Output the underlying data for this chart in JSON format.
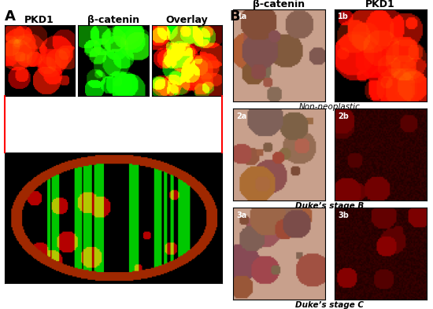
{
  "title_A": "A",
  "title_B": "B",
  "label_PKD1": "PKD1",
  "label_beta_catenin": "β-catenin",
  "label_overlay": "Overlay",
  "label_non_neoplastic": "Non-neoplastic",
  "label_dukes_B": "Duke’s stage B",
  "label_dukes_C": "Duke’s stage C",
  "label_1a": "1a",
  "label_1b": "1b",
  "label_2a": "2a",
  "label_2b": "2b",
  "label_3a": "3a",
  "label_3b": "3b",
  "bg_color": "#ffffff",
  "border_color": "#cccccc",
  "arrow_color": "red",
  "label_fontsize": 9,
  "panel_label_fontsize": 13
}
